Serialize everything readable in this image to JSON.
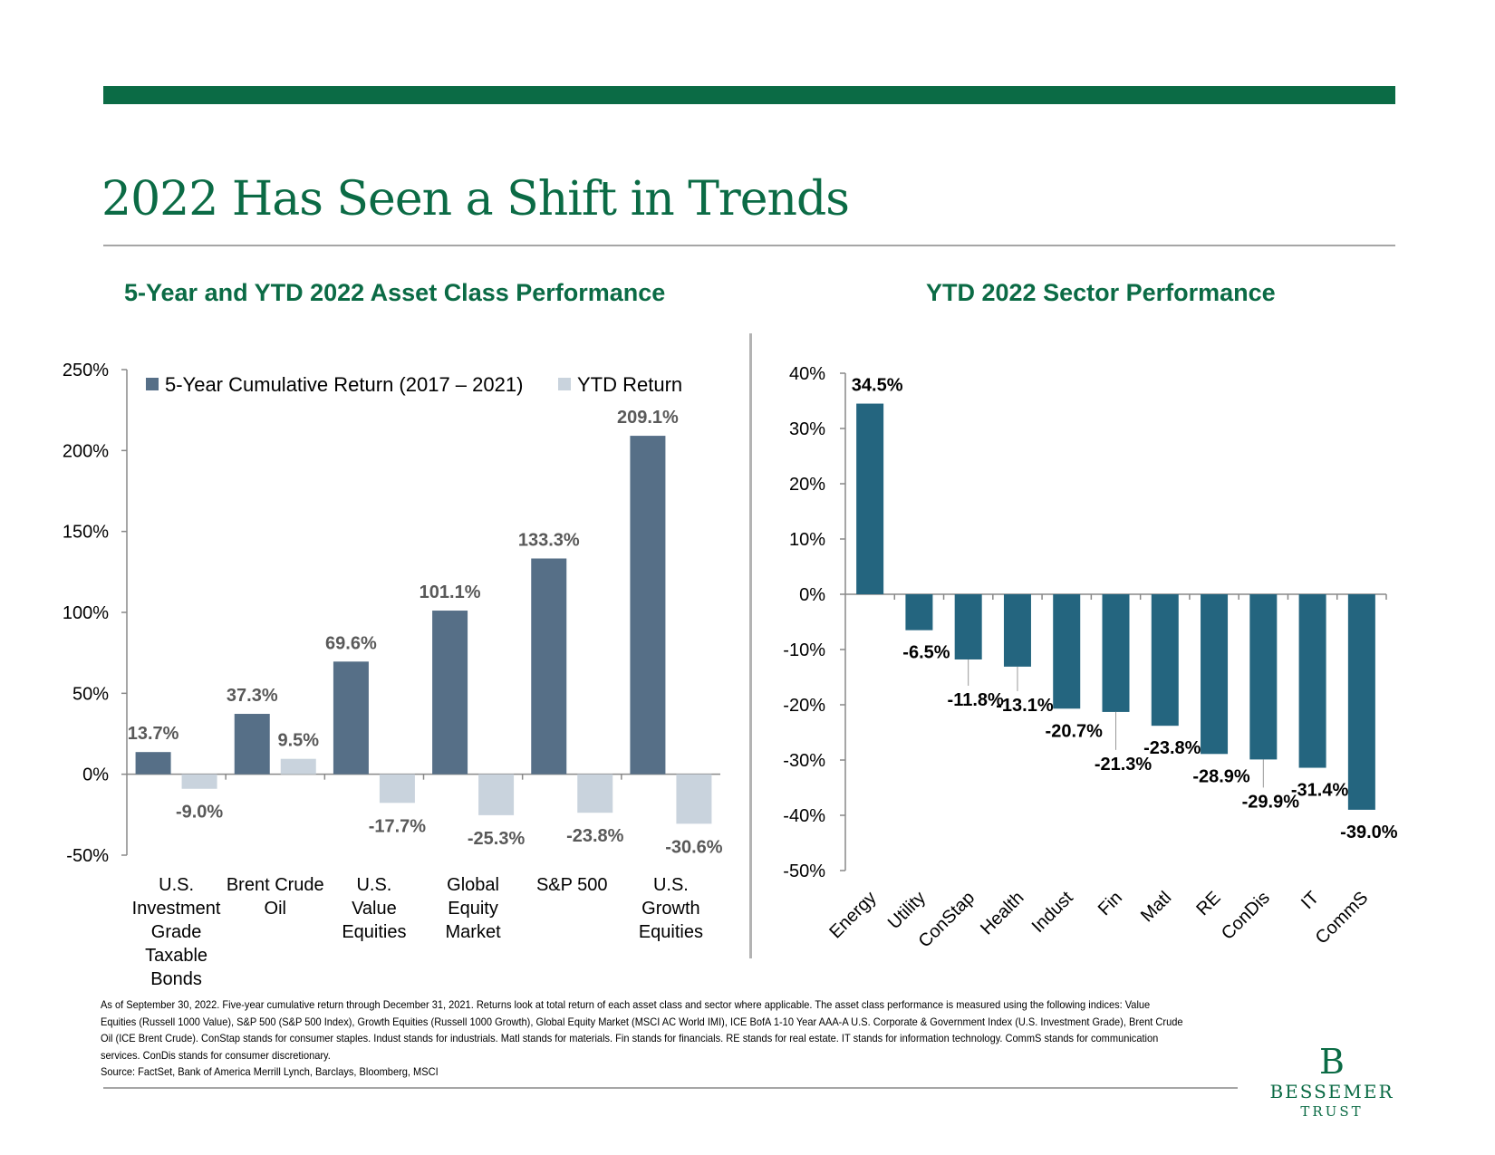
{
  "page": {
    "title": "2022 Has Seen a Shift in Trends",
    "colors": {
      "brand_green": "#0b6b45",
      "rule_gray": "#a6a6a6"
    }
  },
  "footnote": {
    "text": "As of September 30, 2022. Five-year cumulative return through December 31, 2021. Returns look at total return of each asset class and sector where applicable. The asset class performance is measured using the following indices: Value Equities (Russell 1000 Value), S&P 500 (S&P 500 Index), Growth Equities (Russell 1000 Growth), Global Equity Market (MSCI AC World IMI), ICE BofA 1-10 Year AAA-A U.S. Corporate & Government Index (U.S. Investment Grade), Brent Crude Oil (ICE Brent Crude). ConStap stands for consumer staples. Indust stands for industrials. Matl stands for materials. Fin stands for financials. RE stands for real estate. IT stands for information technology. CommS stands for communication services. ConDis stands for consumer discretionary.",
    "source": "Source: FactSet, Bank of America Merrill Lynch, Barclays, Bloomberg, MSCI"
  },
  "logo": {
    "glyph": "B",
    "name": "BESSEMER",
    "sub": "TRUST"
  },
  "chart_data": [
    {
      "type": "bar",
      "title": "5-Year and YTD 2022 Asset Class Performance",
      "categories": [
        [
          "U.S.",
          "Investment",
          "Grade",
          "Taxable",
          "Bonds"
        ],
        [
          "Brent Crude",
          "Oil"
        ],
        [
          "U.S.",
          "Value",
          "Equities"
        ],
        [
          "Global",
          "Equity",
          "Market"
        ],
        [
          "S&P 500"
        ],
        [
          "U.S.",
          "Growth",
          "Equities"
        ]
      ],
      "series": [
        {
          "name": "5-Year Cumulative Return (2017 – 2021)",
          "color": "#566f87",
          "values": [
            13.7,
            37.3,
            69.6,
            101.1,
            133.3,
            209.1
          ],
          "labels": [
            "13.7%",
            "37.3%",
            "69.6%",
            "101.1%",
            "133.3%",
            "209.1%"
          ]
        },
        {
          "name": "YTD Return",
          "color": "#c9d3dd",
          "values": [
            -9.0,
            9.5,
            -17.7,
            -25.3,
            -23.8,
            -30.6
          ],
          "labels": [
            "-9.0%",
            "9.5%",
            "-17.7%",
            "-25.3%",
            "-23.8%",
            "-30.6%"
          ]
        }
      ],
      "ylim": [
        -50,
        250
      ],
      "yticks": [
        -50,
        0,
        50,
        100,
        150,
        200,
        250
      ],
      "ytick_labels": [
        "-50%",
        "0%",
        "50%",
        "100%",
        "150%",
        "200%",
        "250%"
      ],
      "legend": "top",
      "grid": false
    },
    {
      "type": "bar",
      "title": "YTD 2022 Sector Performance",
      "categories": [
        "Energy",
        "Utility",
        "ConStap",
        "Health",
        "Indust",
        "Fin",
        "Matl",
        "RE",
        "ConDis",
        "IT",
        "CommS"
      ],
      "series": [
        {
          "color": "#24657f",
          "values": [
            34.5,
            -6.5,
            -11.8,
            -13.1,
            -20.7,
            -21.3,
            -23.8,
            -28.9,
            -29.9,
            -31.4,
            -39.0
          ],
          "labels": [
            "34.5%",
            "-6.5%",
            "-11.8%",
            "-13.1%",
            "-20.7%",
            "-21.3%",
            "-23.8%",
            "-28.9%",
            "-29.9%",
            "-31.4%",
            "-39.0%"
          ]
        }
      ],
      "ylim": [
        -50,
        40
      ],
      "yticks": [
        -50,
        -40,
        -30,
        -20,
        -10,
        0,
        10,
        20,
        30,
        40
      ],
      "ytick_labels": [
        "-50%",
        "-40%",
        "-30%",
        "-20%",
        "-10%",
        "0%",
        "10%",
        "20%",
        "30%",
        "40%"
      ],
      "grid": false
    }
  ]
}
